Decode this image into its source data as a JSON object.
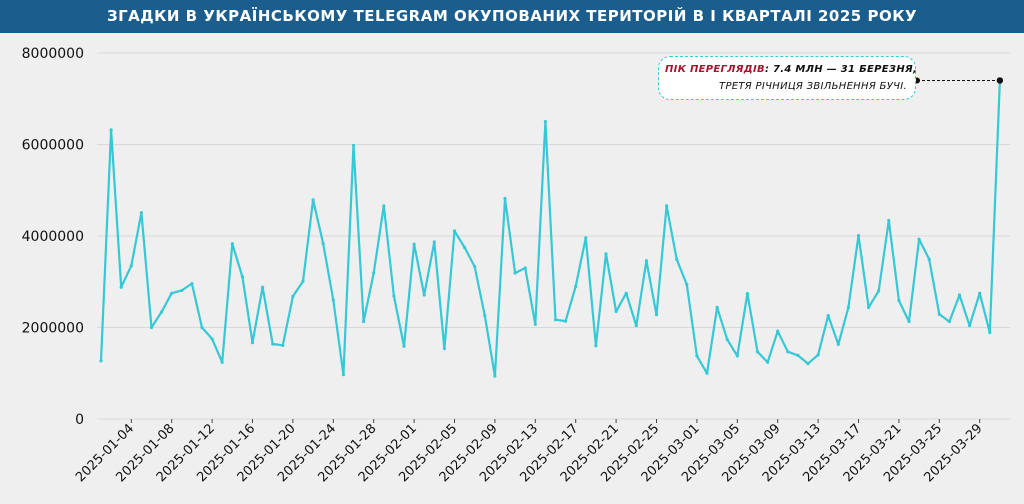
{
  "header": {
    "title": "ЗГАДКИ В УКРАЇНСЬКОМУ TELEGRAM ОКУПОВАНИХ ТЕРИТОРІЙ В І КВАРТАЛІ 2025 РОКУ"
  },
  "annotation": {
    "label": "ПІК ПЕРЕГЛЯДІВ",
    "line1_value": ": 7.4 МЛН — 31 БЕРЕЗНЯ,",
    "line2": "ТРЕТЯ РІЧНИЦЯ ЗВІЛЬНЕННЯ БУЧІ.",
    "label_color": "#a3162f",
    "target_date": "2025-03-31",
    "target_value": 7400000
  },
  "colors": {
    "line": "#35c8d6",
    "title_bg": "#1b5e8d",
    "background": "#efefef",
    "grid": "#d8d8d8"
  },
  "chart_data": {
    "type": "line",
    "title": "ЗГАДКИ В УКРАЇНСЬКОМУ TELEGRAM ОКУПОВАНИХ ТЕРИТОРІЙ В І КВАРТАЛІ 2025 РОКУ",
    "xlabel": "",
    "ylabel": "",
    "ylim": [
      0,
      8000000
    ],
    "yticks": [
      0,
      2000000,
      4000000,
      6000000,
      8000000
    ],
    "ytick_labels": [
      "0",
      "2000000",
      "4000000",
      "6000000",
      "8000000"
    ],
    "xticks": [
      "2025-01-04",
      "2025-01-08",
      "2025-01-12",
      "2025-01-16",
      "2025-01-20",
      "2025-01-24",
      "2025-01-28",
      "2025-02-01",
      "2025-02-05",
      "2025-02-09",
      "2025-02-13",
      "2025-02-17",
      "2025-02-21",
      "2025-02-25",
      "2025-03-01",
      "2025-03-05",
      "2025-03-09",
      "2025-03-13",
      "2025-03-17",
      "2025-03-21",
      "2025-03-25",
      "2025-03-29"
    ],
    "grid": true,
    "x": [
      "2025-01-01",
      "2025-01-02",
      "2025-01-03",
      "2025-01-04",
      "2025-01-05",
      "2025-01-06",
      "2025-01-07",
      "2025-01-08",
      "2025-01-09",
      "2025-01-10",
      "2025-01-11",
      "2025-01-12",
      "2025-01-13",
      "2025-01-14",
      "2025-01-15",
      "2025-01-16",
      "2025-01-17",
      "2025-01-18",
      "2025-01-19",
      "2025-01-20",
      "2025-01-21",
      "2025-01-22",
      "2025-01-23",
      "2025-01-24",
      "2025-01-25",
      "2025-01-26",
      "2025-01-27",
      "2025-01-28",
      "2025-01-29",
      "2025-01-30",
      "2025-01-31",
      "2025-02-01",
      "2025-02-02",
      "2025-02-03",
      "2025-02-04",
      "2025-02-05",
      "2025-02-06",
      "2025-02-07",
      "2025-02-08",
      "2025-02-09",
      "2025-02-10",
      "2025-02-11",
      "2025-02-12",
      "2025-02-13",
      "2025-02-14",
      "2025-02-15",
      "2025-02-16",
      "2025-02-17",
      "2025-02-18",
      "2025-02-19",
      "2025-02-20",
      "2025-02-21",
      "2025-02-22",
      "2025-02-23",
      "2025-02-24",
      "2025-02-25",
      "2025-02-26",
      "2025-02-27",
      "2025-02-28",
      "2025-03-01",
      "2025-03-02",
      "2025-03-03",
      "2025-03-04",
      "2025-03-05",
      "2025-03-06",
      "2025-03-07",
      "2025-03-08",
      "2025-03-09",
      "2025-03-10",
      "2025-03-11",
      "2025-03-12",
      "2025-03-13",
      "2025-03-14",
      "2025-03-15",
      "2025-03-16",
      "2025-03-17",
      "2025-03-18",
      "2025-03-19",
      "2025-03-20",
      "2025-03-21",
      "2025-03-22",
      "2025-03-23",
      "2025-03-24",
      "2025-03-25",
      "2025-03-26",
      "2025-03-27",
      "2025-03-28",
      "2025-03-29",
      "2025-03-30",
      "2025-03-31"
    ],
    "series": [
      {
        "values": [
          1270000,
          6320000,
          2880000,
          3350000,
          4510000,
          2000000,
          2340000,
          2750000,
          2810000,
          2960000,
          2000000,
          1750000,
          1240000,
          3830000,
          3110000,
          1670000,
          2880000,
          1640000,
          1610000,
          2680000,
          3010000,
          4790000,
          3830000,
          2600000,
          970000,
          5980000,
          2130000,
          3190000,
          4660000,
          2690000,
          1590000,
          3820000,
          2710000,
          3870000,
          1540000,
          4110000,
          3750000,
          3330000,
          2260000,
          940000,
          4820000,
          3190000,
          3300000,
          2070000,
          6500000,
          2170000,
          2140000,
          2900000,
          3960000,
          1600000,
          3610000,
          2350000,
          2750000,
          2040000,
          3460000,
          2280000,
          4660000,
          3490000,
          2940000,
          1380000,
          1000000,
          2440000,
          1740000,
          1380000,
          2740000,
          1470000,
          1240000,
          1920000,
          1470000,
          1390000,
          1210000,
          1400000,
          2260000,
          1630000,
          2440000,
          4010000,
          2440000,
          2800000,
          4340000,
          2590000,
          2130000,
          3930000,
          3490000,
          2290000,
          2130000,
          2710000,
          2040000,
          2750000,
          1890000,
          7400000
        ]
      }
    ]
  }
}
